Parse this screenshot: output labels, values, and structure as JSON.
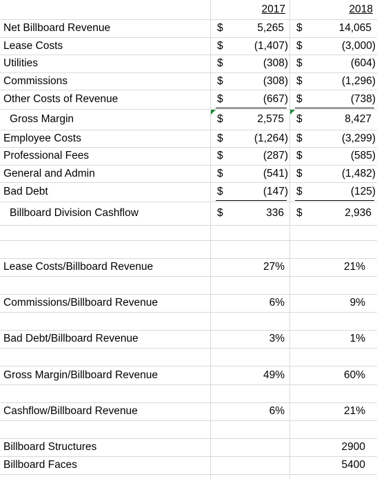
{
  "header": {
    "years": [
      "2017",
      "2018"
    ]
  },
  "rows": [
    {
      "label": "Net Billboard Revenue",
      "currency": [
        "$",
        "$"
      ],
      "values": [
        "5,265",
        "14,065"
      ]
    },
    {
      "label": "Lease Costs",
      "currency": [
        "$",
        "$"
      ],
      "values": [
        "(1,407)",
        "(3,000)"
      ]
    },
    {
      "label": "Utilities",
      "currency": [
        "$",
        "$"
      ],
      "values": [
        "(308)",
        "(604)"
      ]
    },
    {
      "label": "Commissions",
      "currency": [
        "$",
        "$"
      ],
      "values": [
        "(308)",
        "(1,296)"
      ]
    },
    {
      "label": "Other Costs of Revenue",
      "currency": [
        "$",
        "$"
      ],
      "values": [
        "(667)",
        "(738)"
      ]
    },
    {
      "label": "Gross Margin",
      "currency": [
        "$",
        "$"
      ],
      "values": [
        "2,575",
        "8,427"
      ]
    },
    {
      "label": "Employee Costs",
      "currency": [
        "$",
        "$"
      ],
      "values": [
        "(1,264)",
        "(3,299)"
      ]
    },
    {
      "label": "Professional Fees",
      "currency": [
        "$",
        "$"
      ],
      "values": [
        "(287)",
        "(585)"
      ]
    },
    {
      "label": "General and Admin",
      "currency": [
        "$",
        "$"
      ],
      "values": [
        "(541)",
        "(1,482)"
      ]
    },
    {
      "label": "Bad Debt",
      "currency": [
        "$",
        "$"
      ],
      "values": [
        "(147)",
        "(125)"
      ]
    },
    {
      "label": "Billboard Division Cashflow",
      "currency": [
        "$",
        "$"
      ],
      "values": [
        "336",
        "2,936"
      ]
    },
    {
      "label": "Lease Costs/Billboard Revenue",
      "values": [
        "27%",
        "21%"
      ]
    },
    {
      "label": "Commissions/Billboard Revenue",
      "values": [
        "6%",
        "9%"
      ]
    },
    {
      "label": "Bad Debt/Billboard Revenue",
      "values": [
        "3%",
        "1%"
      ]
    },
    {
      "label": "Gross Margin/Billboard Revenue",
      "values": [
        "49%",
        "60%"
      ]
    },
    {
      "label": "Cashflow/Billboard Revenue",
      "values": [
        "6%",
        "21%"
      ]
    },
    {
      "label": "Billboard Structures",
      "values": [
        null,
        "2900"
      ]
    },
    {
      "label": "Billboard Faces",
      "values": [
        null,
        "5400"
      ]
    }
  ]
}
